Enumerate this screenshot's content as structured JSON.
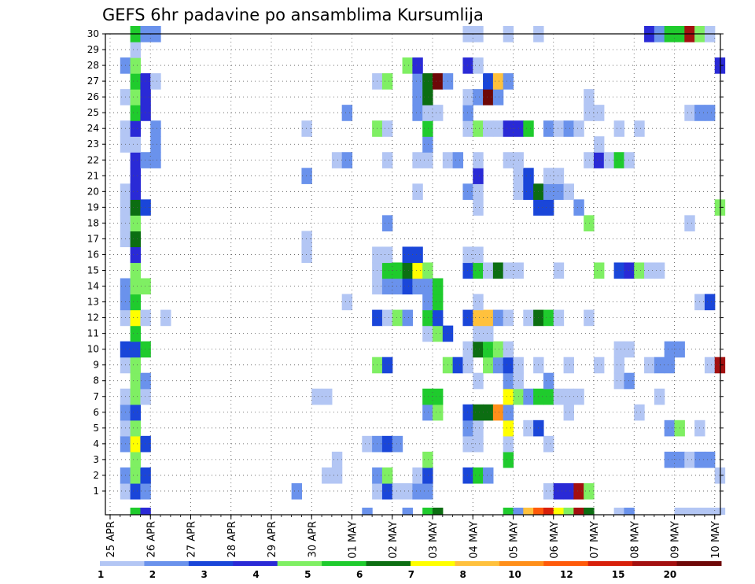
{
  "chart_data": {
    "type": "heatmap",
    "title": "GEFS 6hr padavine po ansamblima Kursumlija",
    "y_ticks": [
      "1",
      "2",
      "3",
      "4",
      "5",
      "6",
      "7",
      "8",
      "9",
      "10",
      "11",
      "12",
      "13",
      "14",
      "15",
      "16",
      "17",
      "18",
      "19",
      "20",
      "21",
      "22",
      "23",
      "24",
      "25",
      "26",
      "27",
      "28",
      "29",
      "30"
    ],
    "x_ticks": [
      "25 APR",
      "26 APR",
      "27 APR",
      "28 APR",
      "29 APR",
      "30 APR",
      "01 MAY",
      "02 MAY",
      "03 MAY",
      "04 MAY",
      "05 MAY",
      "06 MAY",
      "07 MAY",
      "08 MAY",
      "09 MAY",
      "10 MAY"
    ],
    "x_range": [
      0,
      15.25
    ],
    "y_range": [
      0,
      30
    ],
    "grid": "dotted",
    "colorbar": {
      "labels": [
        "1",
        "2",
        "3",
        "4",
        "5",
        "6",
        "7",
        "8",
        "10",
        "12",
        "15",
        "20"
      ],
      "colors": [
        "#b3c6f4",
        "#6a92ec",
        "#1a46d9",
        "#2a2ad6",
        "#7fef63",
        "#1fcb2d",
        "#0c6e12",
        "#ffff00",
        "#ffc13d",
        "#ff8f1a",
        "#ff5a0a",
        "#d8200a",
        "#a31010",
        "#6e0808"
      ]
    },
    "cells": [
      [
        1,
        0.25,
        0
      ],
      [
        1,
        0.5,
        2
      ],
      [
        1,
        0.75,
        1
      ],
      [
        1,
        4.5,
        1
      ],
      [
        1,
        6.5,
        0
      ],
      [
        1,
        6.75,
        2
      ],
      [
        1,
        7,
        0
      ],
      [
        1,
        7.25,
        0
      ],
      [
        1,
        7.5,
        1
      ],
      [
        1,
        7.75,
        1
      ],
      [
        1,
        10.75,
        0
      ],
      [
        1,
        11,
        3
      ],
      [
        1,
        11.25,
        3
      ],
      [
        1,
        11.5,
        12
      ],
      [
        1,
        11.75,
        4
      ],
      [
        2,
        0.25,
        1
      ],
      [
        2,
        0.5,
        4
      ],
      [
        2,
        0.75,
        2
      ],
      [
        2,
        5.25,
        0
      ],
      [
        2,
        5.5,
        0
      ],
      [
        2,
        6.5,
        1
      ],
      [
        2,
        6.75,
        4
      ],
      [
        2,
        7.5,
        0
      ],
      [
        2,
        7.75,
        2
      ],
      [
        2,
        8.75,
        2
      ],
      [
        2,
        9,
        5
      ],
      [
        2,
        9.25,
        1
      ],
      [
        2,
        15,
        0
      ],
      [
        3,
        0.5,
        4
      ],
      [
        3,
        5.5,
        0
      ],
      [
        3,
        7.75,
        4
      ],
      [
        3,
        9.75,
        5
      ],
      [
        3,
        13.75,
        1
      ],
      [
        3,
        14,
        1
      ],
      [
        3,
        14.25,
        0
      ],
      [
        3,
        14.5,
        1
      ],
      [
        3,
        14.75,
        1
      ],
      [
        4,
        0.25,
        1
      ],
      [
        4,
        0.5,
        7
      ],
      [
        4,
        0.75,
        2
      ],
      [
        4,
        6.25,
        0
      ],
      [
        4,
        6.5,
        1
      ],
      [
        4,
        6.75,
        2
      ],
      [
        4,
        7,
        1
      ],
      [
        4,
        8.75,
        0
      ],
      [
        4,
        9,
        0
      ],
      [
        4,
        9.75,
        0
      ],
      [
        4,
        10.75,
        0
      ],
      [
        5,
        0.25,
        0
      ],
      [
        5,
        0.5,
        4
      ],
      [
        5,
        8.75,
        1
      ],
      [
        5,
        9,
        0
      ],
      [
        5,
        9.75,
        7
      ],
      [
        5,
        10.25,
        0
      ],
      [
        5,
        10.5,
        2
      ],
      [
        5,
        13.75,
        1
      ],
      [
        5,
        14,
        4
      ],
      [
        5,
        14.5,
        0
      ],
      [
        6,
        0.25,
        1
      ],
      [
        6,
        0.5,
        2
      ],
      [
        6,
        7.75,
        1
      ],
      [
        6,
        8,
        4
      ],
      [
        6,
        8.75,
        2
      ],
      [
        6,
        9,
        6
      ],
      [
        6,
        9.25,
        6
      ],
      [
        6,
        9.5,
        9
      ],
      [
        6,
        9.75,
        1
      ],
      [
        6,
        11.25,
        0
      ],
      [
        6,
        13,
        0
      ],
      [
        7,
        0.25,
        0
      ],
      [
        7,
        0.5,
        4
      ],
      [
        7,
        0.75,
        0
      ],
      [
        7,
        5,
        0
      ],
      [
        7,
        5.25,
        0
      ],
      [
        7,
        7.75,
        5
      ],
      [
        7,
        8,
        5
      ],
      [
        7,
        9.75,
        7
      ],
      [
        7,
        10,
        4
      ],
      [
        7,
        10.25,
        1
      ],
      [
        7,
        10.5,
        5
      ],
      [
        7,
        10.75,
        5
      ],
      [
        7,
        11,
        0
      ],
      [
        7,
        11.25,
        0
      ],
      [
        7,
        11.5,
        0
      ],
      [
        7,
        13.5,
        0
      ],
      [
        8,
        0.5,
        4
      ],
      [
        8,
        0.75,
        1
      ],
      [
        8,
        9,
        0
      ],
      [
        8,
        9.75,
        1
      ],
      [
        8,
        10,
        0
      ],
      [
        8,
        10.75,
        1
      ],
      [
        8,
        12.5,
        0
      ],
      [
        8,
        12.75,
        1
      ],
      [
        9,
        0.25,
        0
      ],
      [
        9,
        0.5,
        4
      ],
      [
        9,
        6.5,
        4
      ],
      [
        9,
        6.75,
        2
      ],
      [
        9,
        8.25,
        4
      ],
      [
        9,
        8.5,
        2
      ],
      [
        9,
        8.75,
        0
      ],
      [
        9,
        9.25,
        4
      ],
      [
        9,
        9.5,
        1
      ],
      [
        9,
        9.75,
        2
      ],
      [
        9,
        10,
        0
      ],
      [
        9,
        10.5,
        0
      ],
      [
        9,
        11.25,
        0
      ],
      [
        9,
        12,
        0
      ],
      [
        9,
        12.5,
        0
      ],
      [
        9,
        13.25,
        0
      ],
      [
        9,
        13.5,
        1
      ],
      [
        9,
        13.75,
        1
      ],
      [
        9,
        14.75,
        0
      ],
      [
        9,
        15,
        12
      ],
      [
        10,
        0.25,
        2
      ],
      [
        10,
        0.5,
        2
      ],
      [
        10,
        0.75,
        5
      ],
      [
        10,
        8.75,
        0
      ],
      [
        10,
        9,
        6
      ],
      [
        10,
        9.25,
        5
      ],
      [
        10,
        9.5,
        4
      ],
      [
        10,
        9.75,
        0
      ],
      [
        10,
        12.5,
        0
      ],
      [
        10,
        12.75,
        0
      ],
      [
        10,
        13.75,
        1
      ],
      [
        10,
        14,
        1
      ],
      [
        11,
        0.5,
        5
      ],
      [
        11,
        7.75,
        0
      ],
      [
        11,
        8,
        4
      ],
      [
        11,
        8.25,
        2
      ],
      [
        11,
        9,
        0
      ],
      [
        11,
        9.25,
        0
      ],
      [
        12,
        0.25,
        0
      ],
      [
        12,
        0.5,
        7
      ],
      [
        12,
        0.75,
        0
      ],
      [
        12,
        1.25,
        0
      ],
      [
        12,
        6.5,
        2
      ],
      [
        12,
        6.75,
        0
      ],
      [
        12,
        7,
        4
      ],
      [
        12,
        7.25,
        1
      ],
      [
        12,
        7.75,
        5
      ],
      [
        12,
        8,
        2
      ],
      [
        12,
        8.75,
        2
      ],
      [
        12,
        9,
        8
      ],
      [
        12,
        9.25,
        8
      ],
      [
        12,
        9.5,
        1
      ],
      [
        12,
        9.75,
        0
      ],
      [
        12,
        10.25,
        0
      ],
      [
        12,
        10.5,
        6
      ],
      [
        12,
        10.75,
        5
      ],
      [
        12,
        11,
        0
      ],
      [
        12,
        11.75,
        0
      ],
      [
        13,
        0.25,
        1
      ],
      [
        13,
        0.5,
        5
      ],
      [
        13,
        5.75,
        0
      ],
      [
        13,
        7.75,
        1
      ],
      [
        13,
        8,
        5
      ],
      [
        13,
        9,
        0
      ],
      [
        13,
        14.5,
        0
      ],
      [
        13,
        14.75,
        2
      ],
      [
        14,
        0.25,
        1
      ],
      [
        14,
        0.5,
        4
      ],
      [
        14,
        0.75,
        4
      ],
      [
        14,
        6.5,
        0
      ],
      [
        14,
        6.75,
        1
      ],
      [
        14,
        7,
        1
      ],
      [
        14,
        7.25,
        2
      ],
      [
        14,
        7.5,
        1
      ],
      [
        14,
        7.75,
        1
      ],
      [
        14,
        8,
        5
      ],
      [
        15,
        0.5,
        4
      ],
      [
        15,
        6.5,
        0
      ],
      [
        15,
        6.75,
        5
      ],
      [
        15,
        7,
        5
      ],
      [
        15,
        7.25,
        6
      ],
      [
        15,
        7.5,
        7
      ],
      [
        15,
        7.75,
        4
      ],
      [
        15,
        8.75,
        2
      ],
      [
        15,
        9,
        5
      ],
      [
        15,
        9.25,
        0
      ],
      [
        15,
        9.5,
        6
      ],
      [
        15,
        9.75,
        0
      ],
      [
        15,
        10,
        0
      ],
      [
        15,
        11,
        0
      ],
      [
        15,
        12,
        4
      ],
      [
        15,
        12.5,
        2
      ],
      [
        15,
        12.75,
        3
      ],
      [
        15,
        13,
        4
      ],
      [
        15,
        13.25,
        0
      ],
      [
        15,
        13.5,
        0
      ],
      [
        16,
        0.5,
        3
      ],
      [
        16,
        4.75,
        0
      ],
      [
        16,
        6.5,
        0
      ],
      [
        16,
        6.75,
        0
      ],
      [
        16,
        7.25,
        2
      ],
      [
        16,
        7.5,
        2
      ],
      [
        16,
        8.75,
        0
      ],
      [
        16,
        9,
        0
      ],
      [
        17,
        0.25,
        0
      ],
      [
        17,
        0.5,
        6
      ],
      [
        17,
        4.75,
        0
      ],
      [
        18,
        0.25,
        0
      ],
      [
        18,
        0.5,
        4
      ],
      [
        18,
        6.75,
        1
      ],
      [
        18,
        11.75,
        4
      ],
      [
        18,
        14.25,
        0
      ],
      [
        19,
        0.25,
        0
      ],
      [
        19,
        0.5,
        6
      ],
      [
        19,
        0.75,
        2
      ],
      [
        19,
        9,
        0
      ],
      [
        19,
        10.5,
        2
      ],
      [
        19,
        10.75,
        2
      ],
      [
        19,
        11.5,
        1
      ],
      [
        19,
        15,
        4
      ],
      [
        20,
        0.25,
        0
      ],
      [
        20,
        0.5,
        3
      ],
      [
        20,
        7.5,
        0
      ],
      [
        20,
        8.75,
        1
      ],
      [
        20,
        9,
        0
      ],
      [
        20,
        10,
        0
      ],
      [
        20,
        10.25,
        2
      ],
      [
        20,
        10.5,
        6
      ],
      [
        20,
        10.75,
        1
      ],
      [
        20,
        11,
        1
      ],
      [
        20,
        11.25,
        0
      ],
      [
        21,
        0.5,
        3
      ],
      [
        21,
        4.75,
        1
      ],
      [
        21,
        9,
        3
      ],
      [
        21,
        10,
        0
      ],
      [
        21,
        10.25,
        2
      ],
      [
        21,
        10.75,
        0
      ],
      [
        21,
        11,
        0
      ],
      [
        22,
        0.5,
        3
      ],
      [
        22,
        0.75,
        1
      ],
      [
        22,
        1,
        1
      ],
      [
        22,
        5.5,
        0
      ],
      [
        22,
        5.75,
        1
      ],
      [
        22,
        6.75,
        0
      ],
      [
        22,
        7.5,
        0
      ],
      [
        22,
        7.75,
        0
      ],
      [
        22,
        8.25,
        0
      ],
      [
        22,
        8.5,
        1
      ],
      [
        22,
        9,
        0
      ],
      [
        22,
        9.75,
        0
      ],
      [
        22,
        10,
        0
      ],
      [
        22,
        11.75,
        0
      ],
      [
        22,
        12,
        3
      ],
      [
        22,
        12.25,
        0
      ],
      [
        22,
        12.5,
        5
      ],
      [
        22,
        12.75,
        0
      ],
      [
        23,
        0.25,
        0
      ],
      [
        23,
        0.5,
        0
      ],
      [
        23,
        1,
        1
      ],
      [
        23,
        7.75,
        1
      ],
      [
        23,
        12,
        0
      ],
      [
        24,
        0.25,
        0
      ],
      [
        24,
        0.5,
        3
      ],
      [
        24,
        1,
        1
      ],
      [
        24,
        4.75,
        0
      ],
      [
        24,
        6.5,
        4
      ],
      [
        24,
        6.75,
        0
      ],
      [
        24,
        7.75,
        5
      ],
      [
        24,
        8.75,
        0
      ],
      [
        24,
        9,
        4
      ],
      [
        24,
        9.25,
        0
      ],
      [
        24,
        9.5,
        0
      ],
      [
        24,
        9.75,
        3
      ],
      [
        24,
        10,
        3
      ],
      [
        24,
        10.25,
        5
      ],
      [
        24,
        10.75,
        1
      ],
      [
        24,
        11,
        0
      ],
      [
        24,
        11.25,
        1
      ],
      [
        24,
        11.5,
        0
      ],
      [
        24,
        12.5,
        0
      ],
      [
        24,
        13,
        0
      ],
      [
        25,
        0.5,
        5
      ],
      [
        25,
        0.75,
        3
      ],
      [
        25,
        5.75,
        1
      ],
      [
        25,
        7.5,
        1
      ],
      [
        25,
        7.75,
        0
      ],
      [
        25,
        8,
        0
      ],
      [
        25,
        8.75,
        1
      ],
      [
        25,
        11.75,
        0
      ],
      [
        25,
        12,
        0
      ],
      [
        25,
        14.25,
        0
      ],
      [
        25,
        14.5,
        1
      ],
      [
        25,
        14.75,
        1
      ],
      [
        26,
        0.25,
        0
      ],
      [
        26,
        0.5,
        4
      ],
      [
        26,
        0.75,
        3
      ],
      [
        26,
        7.5,
        1
      ],
      [
        26,
        7.75,
        6
      ],
      [
        26,
        8.75,
        0
      ],
      [
        26,
        9,
        1
      ],
      [
        26,
        9.25,
        13
      ],
      [
        26,
        9.5,
        1
      ],
      [
        26,
        11.75,
        0
      ],
      [
        27,
        0.5,
        5
      ],
      [
        27,
        0.75,
        3
      ],
      [
        27,
        1,
        0
      ],
      [
        27,
        6.5,
        0
      ],
      [
        27,
        6.75,
        4
      ],
      [
        27,
        7.5,
        1
      ],
      [
        27,
        7.75,
        6
      ],
      [
        27,
        8,
        13
      ],
      [
        27,
        8.25,
        1
      ],
      [
        27,
        9.25,
        2
      ],
      [
        27,
        9.5,
        8
      ],
      [
        27,
        9.75,
        1
      ],
      [
        28,
        0.25,
        1
      ],
      [
        28,
        0.5,
        4
      ],
      [
        28,
        7.25,
        4
      ],
      [
        28,
        7.5,
        3
      ],
      [
        28,
        8.75,
        3
      ],
      [
        28,
        9,
        0
      ],
      [
        28,
        15,
        3
      ],
      [
        29,
        0.5,
        0
      ],
      [
        30,
        0.5,
        5
      ],
      [
        30,
        0.75,
        1
      ],
      [
        30,
        1,
        1
      ],
      [
        30,
        8.75,
        0
      ],
      [
        30,
        9,
        0
      ],
      [
        30,
        9.75,
        0
      ],
      [
        30,
        10.5,
        0
      ],
      [
        30,
        13.25,
        3
      ],
      [
        30,
        13.5,
        1
      ],
      [
        30,
        13.75,
        5
      ],
      [
        30,
        14,
        5
      ],
      [
        30,
        14.25,
        12
      ],
      [
        30,
        14.5,
        4
      ],
      [
        30,
        14.75,
        0
      ]
    ],
    "bottom_strip": [
      [
        0.5,
        5
      ],
      [
        0.75,
        3
      ],
      [
        6.25,
        1
      ],
      [
        7.25,
        1
      ],
      [
        7.75,
        5
      ],
      [
        8,
        6
      ],
      [
        9.75,
        5
      ],
      [
        10,
        1
      ],
      [
        10.25,
        8
      ],
      [
        10.5,
        10
      ],
      [
        10.75,
        11
      ],
      [
        11,
        7
      ],
      [
        11.25,
        4
      ],
      [
        11.5,
        12
      ],
      [
        11.75,
        6
      ],
      [
        12.5,
        0
      ],
      [
        12.75,
        1
      ],
      [
        14,
        0
      ],
      [
        14.25,
        0
      ],
      [
        14.5,
        0
      ],
      [
        14.75,
        0
      ],
      [
        15,
        0
      ]
    ]
  }
}
